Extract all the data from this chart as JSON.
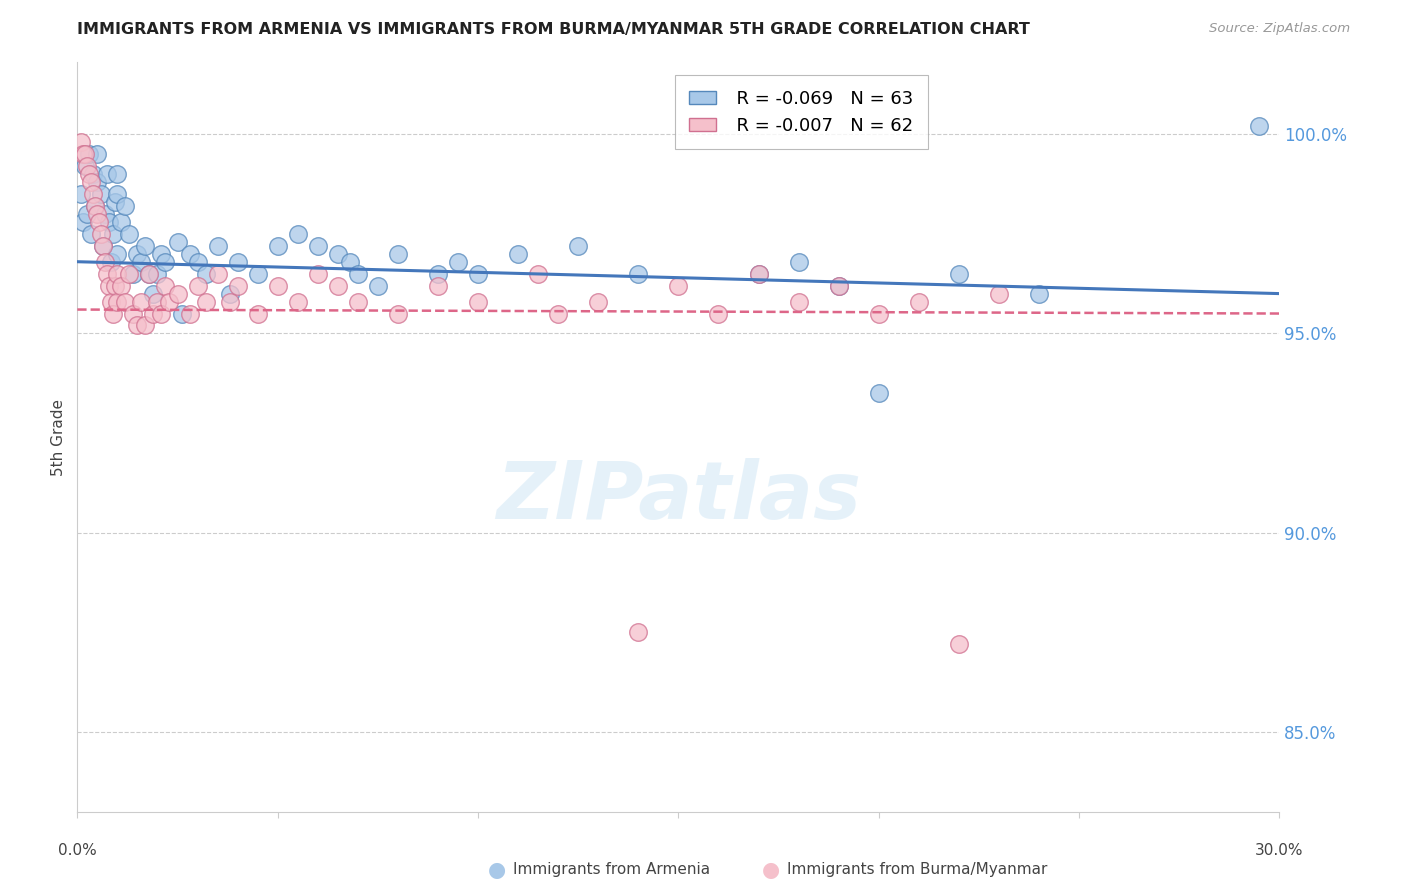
{
  "title": "IMMIGRANTS FROM ARMENIA VS IMMIGRANTS FROM BURMA/MYANMAR 5TH GRADE CORRELATION CHART",
  "source": "Source: ZipAtlas.com",
  "ylabel": "5th Grade",
  "x_range": [
    0.0,
    30.0
  ],
  "y_range": [
    83.0,
    101.8
  ],
  "legend_blue_r": "R = -0.069",
  "legend_blue_n": "N = 63",
  "legend_pink_r": "R = -0.007",
  "legend_pink_n": "N = 62",
  "color_blue_fill": "#a8c8e8",
  "color_blue_edge": "#5588bb",
  "color_pink_fill": "#f5c0cb",
  "color_pink_edge": "#d07090",
  "color_blue_line": "#4477bb",
  "color_pink_line": "#dd6688",
  "color_right_axis": "#5599dd",
  "color_grid": "#cccccc",
  "y_ticks": [
    85.0,
    90.0,
    95.0,
    100.0
  ],
  "blue_line_y_at_0": 96.8,
  "blue_line_y_at_30": 96.0,
  "pink_line_y_at_0": 95.6,
  "pink_line_y_at_30": 95.5,
  "blue_scatter_x": [
    0.1,
    0.15,
    0.2,
    0.25,
    0.3,
    0.35,
    0.4,
    0.45,
    0.5,
    0.5,
    0.6,
    0.65,
    0.7,
    0.75,
    0.8,
    0.85,
    0.9,
    0.95,
    1.0,
    1.0,
    1.0,
    1.1,
    1.2,
    1.3,
    1.4,
    1.5,
    1.6,
    1.7,
    1.8,
    1.9,
    2.0,
    2.1,
    2.2,
    2.5,
    2.6,
    2.8,
    3.0,
    3.2,
    3.5,
    3.8,
    4.0,
    4.5,
    5.0,
    5.5,
    6.0,
    6.5,
    6.8,
    7.0,
    7.5,
    8.0,
    9.0,
    9.5,
    10.0,
    11.0,
    12.5,
    14.0,
    17.0,
    18.0,
    19.0,
    20.0,
    22.0,
    24.0,
    29.5
  ],
  "blue_scatter_y": [
    98.5,
    97.8,
    99.2,
    98.0,
    99.5,
    97.5,
    99.0,
    98.2,
    98.8,
    99.5,
    98.5,
    97.2,
    98.0,
    99.0,
    97.8,
    96.8,
    97.5,
    98.3,
    97.0,
    98.5,
    99.0,
    97.8,
    98.2,
    97.5,
    96.5,
    97.0,
    96.8,
    97.2,
    96.5,
    96.0,
    96.5,
    97.0,
    96.8,
    97.3,
    95.5,
    97.0,
    96.8,
    96.5,
    97.2,
    96.0,
    96.8,
    96.5,
    97.2,
    97.5,
    97.2,
    97.0,
    96.8,
    96.5,
    96.2,
    97.0,
    96.5,
    96.8,
    96.5,
    97.0,
    97.2,
    96.5,
    96.5,
    96.8,
    96.2,
    93.5,
    96.5,
    96.0,
    100.2
  ],
  "pink_scatter_x": [
    0.1,
    0.15,
    0.2,
    0.25,
    0.3,
    0.35,
    0.4,
    0.45,
    0.5,
    0.55,
    0.6,
    0.65,
    0.7,
    0.75,
    0.8,
    0.85,
    0.9,
    0.95,
    1.0,
    1.0,
    1.1,
    1.2,
    1.3,
    1.4,
    1.5,
    1.6,
    1.7,
    1.8,
    1.9,
    2.0,
    2.1,
    2.2,
    2.3,
    2.5,
    2.8,
    3.0,
    3.2,
    3.5,
    3.8,
    4.0,
    4.5,
    5.0,
    5.5,
    6.0,
    6.5,
    7.0,
    8.0,
    9.0,
    10.0,
    11.5,
    12.0,
    13.0,
    14.0,
    15.0,
    16.0,
    17.0,
    18.0,
    19.0,
    20.0,
    21.0,
    22.0,
    23.0
  ],
  "pink_scatter_y": [
    99.8,
    99.5,
    99.5,
    99.2,
    99.0,
    98.8,
    98.5,
    98.2,
    98.0,
    97.8,
    97.5,
    97.2,
    96.8,
    96.5,
    96.2,
    95.8,
    95.5,
    96.2,
    96.5,
    95.8,
    96.2,
    95.8,
    96.5,
    95.5,
    95.2,
    95.8,
    95.2,
    96.5,
    95.5,
    95.8,
    95.5,
    96.2,
    95.8,
    96.0,
    95.5,
    96.2,
    95.8,
    96.5,
    95.8,
    96.2,
    95.5,
    96.2,
    95.8,
    96.5,
    96.2,
    95.8,
    95.5,
    96.2,
    95.8,
    96.5,
    95.5,
    95.8,
    87.5,
    96.2,
    95.5,
    96.5,
    95.8,
    96.2,
    95.5,
    95.8,
    87.2,
    96.0
  ]
}
